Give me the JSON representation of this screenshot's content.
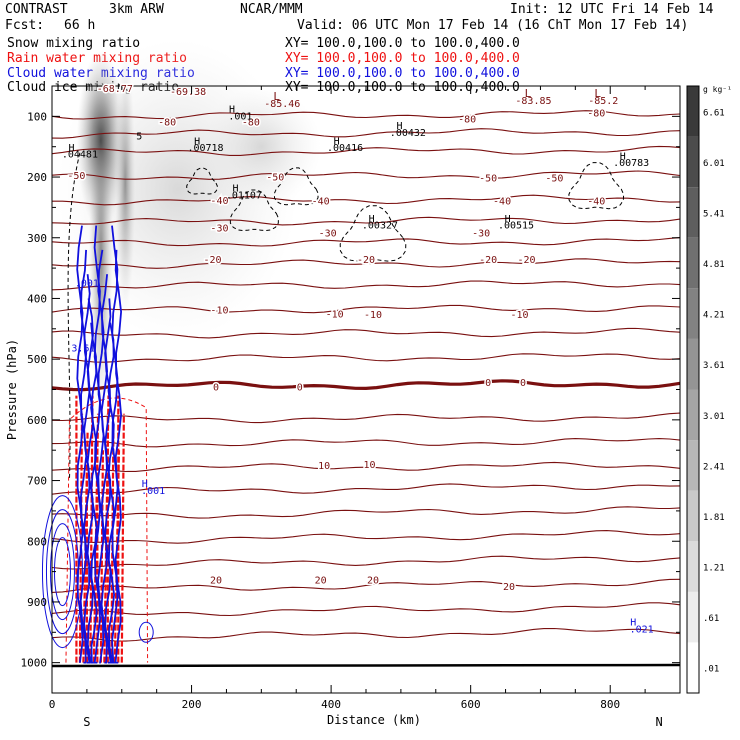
{
  "header": {
    "model": "CONTRAST",
    "resolution": "3km ARW",
    "center": "NCAR/MMM",
    "init": "Init: 12 UTC Fri 14 Feb 14",
    "fcst_label": "Fcst:",
    "fcst_value": "66 h",
    "valid": "Valid: 06 UTC Mon 17 Feb 14 (16 ChT Mon 17 Feb 14)",
    "fields": [
      {
        "name": "Snow mixing ratio",
        "xy": "XY= 100.0,100.0 to 100.0,400.0",
        "color": "#000000"
      },
      {
        "name": "Rain water mixing ratio",
        "xy": "XY= 100.0,100.0 to 100.0,400.0",
        "color": "#ee1111"
      },
      {
        "name": "Cloud water mixing ratio",
        "xy": "XY= 100.0,100.0 to 100.0,400.0",
        "color": "#1111dd"
      },
      {
        "name": "Cloud ice mixing ratio",
        "xy": "XY= 100.0,100.0 to 100.0,400.0",
        "color": "#000000"
      }
    ]
  },
  "chart_data": {
    "type": "heatmap",
    "xlabel": "Distance (km)",
    "ylabel": "Pressure (hPa)",
    "xlim": [
      0,
      900
    ],
    "ylim": [
      1050,
      50
    ],
    "x_ticks": [
      0,
      200,
      400,
      600,
      800
    ],
    "y_ticks": [
      100,
      200,
      300,
      400,
      500,
      600,
      700,
      800,
      900,
      1000
    ],
    "x_end_labels": {
      "left": "S",
      "right": "N"
    },
    "colorbar": {
      "unit": "g kg⁻¹",
      "levels": [
        ".01",
        ".61",
        "1.21",
        "1.81",
        "2.41",
        "3.01",
        "3.61",
        "4.21",
        "4.81",
        "5.41",
        "6.01",
        "6.61"
      ],
      "color_low": "#ffffff",
      "color_high": "#3a3a3a"
    },
    "temperature_contour_color": "#7a1010",
    "temperature_labels": [
      {
        "text": "-68.77",
        "x": 90,
        "p": 60
      },
      {
        "text": "-69.38",
        "x": 195,
        "p": 65
      },
      {
        "text": "-80",
        "x": 165,
        "p": 115
      },
      {
        "text": "-80",
        "x": 285,
        "p": 115
      },
      {
        "text": "-80",
        "x": 595,
        "p": 110
      },
      {
        "text": "-80",
        "x": 780,
        "p": 100
      },
      {
        "text": "-50",
        "x": 35,
        "p": 203
      },
      {
        "text": "-50",
        "x": 320,
        "p": 206
      },
      {
        "text": "-50",
        "x": 625,
        "p": 207
      },
      {
        "text": "-50",
        "x": 720,
        "p": 207
      },
      {
        "text": "-40",
        "x": 240,
        "p": 244
      },
      {
        "text": "-40",
        "x": 385,
        "p": 245
      },
      {
        "text": "-40",
        "x": 645,
        "p": 245
      },
      {
        "text": "-40",
        "x": 780,
        "p": 245
      },
      {
        "text": "-30",
        "x": 240,
        "p": 290
      },
      {
        "text": "-30",
        "x": 395,
        "p": 298
      },
      {
        "text": "-30",
        "x": 615,
        "p": 298
      },
      {
        "text": "-20",
        "x": 230,
        "p": 342
      },
      {
        "text": "-20",
        "x": 450,
        "p": 342
      },
      {
        "text": "-20",
        "x": 625,
        "p": 342
      },
      {
        "text": "-20",
        "x": 680,
        "p": 342
      },
      {
        "text": "-10",
        "x": 240,
        "p": 425
      },
      {
        "text": "-10",
        "x": 405,
        "p": 431
      },
      {
        "text": "-10",
        "x": 460,
        "p": 432
      },
      {
        "text": "-10",
        "x": 670,
        "p": 432
      },
      {
        "text": "0",
        "x": 235,
        "p": 552
      },
      {
        "text": "0",
        "x": 355,
        "p": 552
      },
      {
        "text": "0",
        "x": 625,
        "p": 544
      },
      {
        "text": "0",
        "x": 675,
        "p": 544
      },
      {
        "text": "10",
        "x": 390,
        "p": 681
      },
      {
        "text": "10",
        "x": 455,
        "p": 679
      },
      {
        "text": "20",
        "x": 235,
        "p": 870
      },
      {
        "text": "20",
        "x": 385,
        "p": 870
      },
      {
        "text": "20",
        "x": 460,
        "p": 870
      },
      {
        "text": "20",
        "x": 655,
        "p": 880
      }
    ],
    "low_markers": [
      {
        "label": "L",
        "value": "-85.46",
        "x": 330,
        "p": 85,
        "color": "#7a1010"
      },
      {
        "label": "L",
        "value": "-83.85",
        "x": 690,
        "p": 80,
        "color": "#7a1010"
      },
      {
        "label": "L",
        "value": "-85.2",
        "x": 790,
        "p": 80,
        "color": "#7a1010"
      }
    ],
    "high_markers": [
      {
        "label": "H",
        "value": ".04481",
        "x": 40,
        "p": 168,
        "color": "#000000"
      },
      {
        "label": "H",
        "value": ".001",
        "x": 270,
        "p": 105,
        "color": "#000000"
      },
      {
        "label": "H",
        "value": ".00718",
        "x": 220,
        "p": 157,
        "color": "#000000"
      },
      {
        "label": "H",
        "value": ".00416",
        "x": 420,
        "p": 157,
        "color": "#000000"
      },
      {
        "label": "H",
        "value": ".00432",
        "x": 510,
        "p": 132,
        "color": "#000000"
      },
      {
        "label": "H",
        "value": ".01107",
        "x": 275,
        "p": 235,
        "color": "#000000"
      },
      {
        "label": "H",
        "value": ".00327",
        "x": 470,
        "p": 285,
        "color": "#000000"
      },
      {
        "label": "H",
        "value": ".00515",
        "x": 665,
        "p": 285,
        "color": "#000000"
      },
      {
        "label": "H",
        "value": ".00783",
        "x": 830,
        "p": 182,
        "color": "#000000"
      },
      {
        "label": "H",
        "value": ".001",
        "x": 145,
        "p": 722,
        "color": "#1111dd"
      },
      {
        "label": "H",
        "value": ".021",
        "x": 845,
        "p": 950,
        "color": "#1111dd"
      }
    ],
    "small_labels": [
      {
        "text": ".001",
        "x": 50,
        "p": 380,
        "color": "#1111dd"
      },
      {
        "text": "5",
        "x": 125,
        "p": 138,
        "color": "#000000"
      },
      {
        "text": "3.61",
        "x": 45,
        "p": 487,
        "color": "#1111dd"
      }
    ]
  }
}
